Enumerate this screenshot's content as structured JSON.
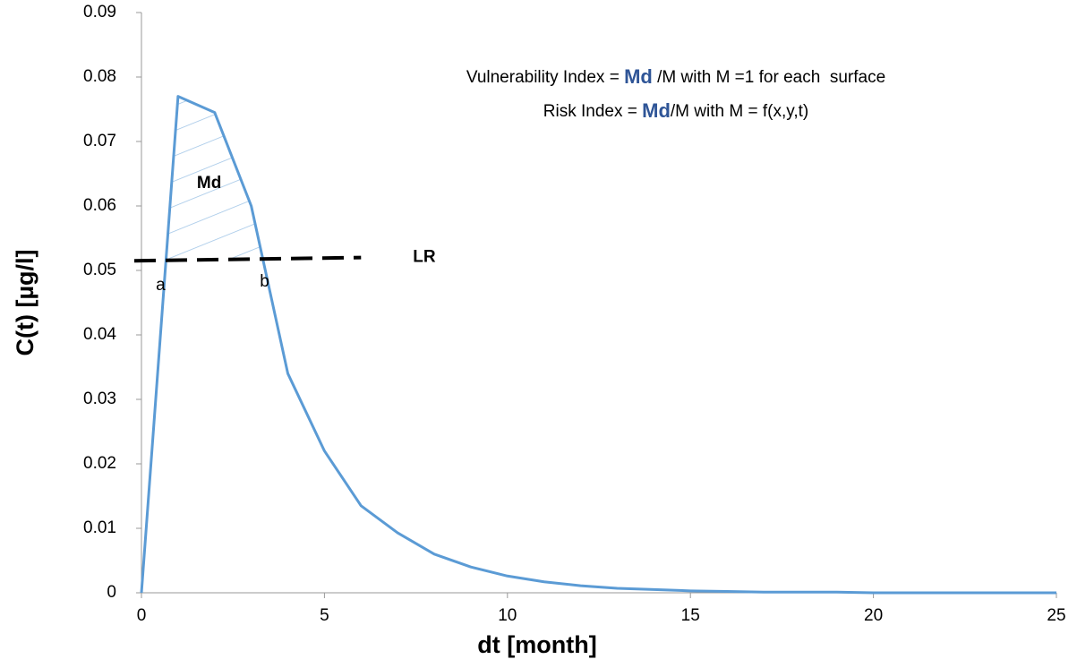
{
  "chart_data": {
    "type": "line",
    "x": [
      0,
      1,
      2,
      3,
      4,
      5,
      6,
      7,
      8,
      9,
      10,
      11,
      12,
      13,
      14,
      15,
      16,
      17,
      18,
      19,
      20,
      21,
      22,
      23,
      24,
      25
    ],
    "series": [
      {
        "name": "C(t)",
        "color": "#5b9bd5",
        "values": [
          0,
          0.077,
          0.0745,
          0.06,
          0.034,
          0.022,
          0.0135,
          0.0093,
          0.006,
          0.004,
          0.0026,
          0.0017,
          0.0011,
          0.0007,
          0.0005,
          0.0003,
          0.0002,
          0.0001,
          0.0001,
          0.0001,
          0,
          0,
          0,
          0,
          0,
          0
        ]
      }
    ],
    "threshold": {
      "name": "LR",
      "color": "#000000",
      "x": [
        0,
        6
      ],
      "values": [
        0.0515,
        0.052
      ]
    },
    "area_label": "Md",
    "point_labels": [
      "a",
      "b"
    ],
    "formula_lines": [
      [
        "Vulnerability Index = ",
        "Md",
        " /M with M =1 for each  surface"
      ],
      [
        "Risk Index = ",
        "Md",
        "/M with M = f(x,y,t)"
      ]
    ],
    "highlight_color": "#2f5597",
    "xlabel": "dt [month]",
    "ylabel": "C(t) [µg/l]",
    "xlim": [
      0,
      25
    ],
    "xticks": [
      0,
      5,
      10,
      15,
      20,
      25
    ],
    "ylim": [
      0,
      0.09
    ],
    "yticks": [
      0,
      0.01,
      0.02,
      0.03,
      0.04,
      0.05,
      0.06,
      0.07,
      0.08,
      0.09
    ]
  }
}
